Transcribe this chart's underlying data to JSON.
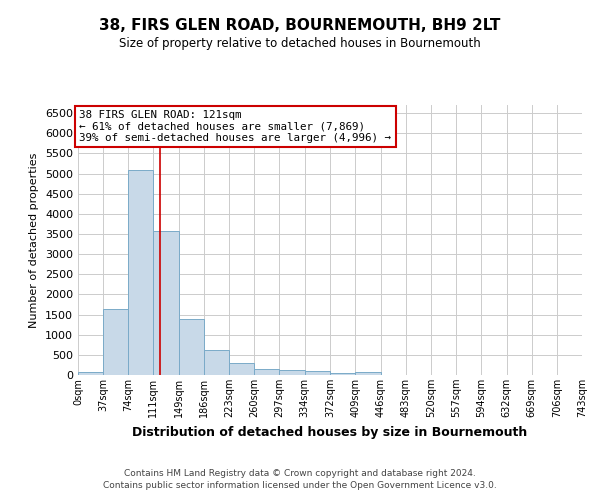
{
  "title": "38, FIRS GLEN ROAD, BOURNEMOUTH, BH9 2LT",
  "subtitle": "Size of property relative to detached houses in Bournemouth",
  "xlabel": "Distribution of detached houses by size in Bournemouth",
  "ylabel": "Number of detached properties",
  "footnote1": "Contains HM Land Registry data © Crown copyright and database right 2024.",
  "footnote2": "Contains public sector information licensed under the Open Government Licence v3.0.",
  "bin_edges": [
    0,
    37,
    74,
    111,
    149,
    186,
    223,
    260,
    297,
    334,
    372,
    409,
    446,
    483,
    520,
    557,
    594,
    632,
    669,
    706,
    743
  ],
  "bin_labels": [
    "0sqm",
    "37sqm",
    "74sqm",
    "111sqm",
    "149sqm",
    "186sqm",
    "223sqm",
    "260sqm",
    "297sqm",
    "334sqm",
    "372sqm",
    "409sqm",
    "446sqm",
    "483sqm",
    "520sqm",
    "557sqm",
    "594sqm",
    "632sqm",
    "669sqm",
    "706sqm",
    "743sqm"
  ],
  "bar_heights": [
    75,
    1650,
    5080,
    3580,
    1400,
    610,
    305,
    155,
    115,
    90,
    50,
    65,
    0,
    0,
    0,
    0,
    0,
    0,
    0,
    0
  ],
  "bar_color": "#c8d9e8",
  "bar_edge_color": "#7aaac8",
  "ylim": [
    0,
    6700
  ],
  "yticks": [
    0,
    500,
    1000,
    1500,
    2000,
    2500,
    3000,
    3500,
    4000,
    4500,
    5000,
    5500,
    6000,
    6500
  ],
  "property_size": 121,
  "red_line_color": "#cc0000",
  "annotation_line1": "38 FIRS GLEN ROAD: 121sqm",
  "annotation_line2": "← 61% of detached houses are smaller (7,869)",
  "annotation_line3": "39% of semi-detached houses are larger (4,996) →",
  "annotation_box_color": "#ffffff",
  "annotation_box_edge": "#cc0000",
  "background_color": "#ffffff",
  "grid_color": "#cccccc"
}
